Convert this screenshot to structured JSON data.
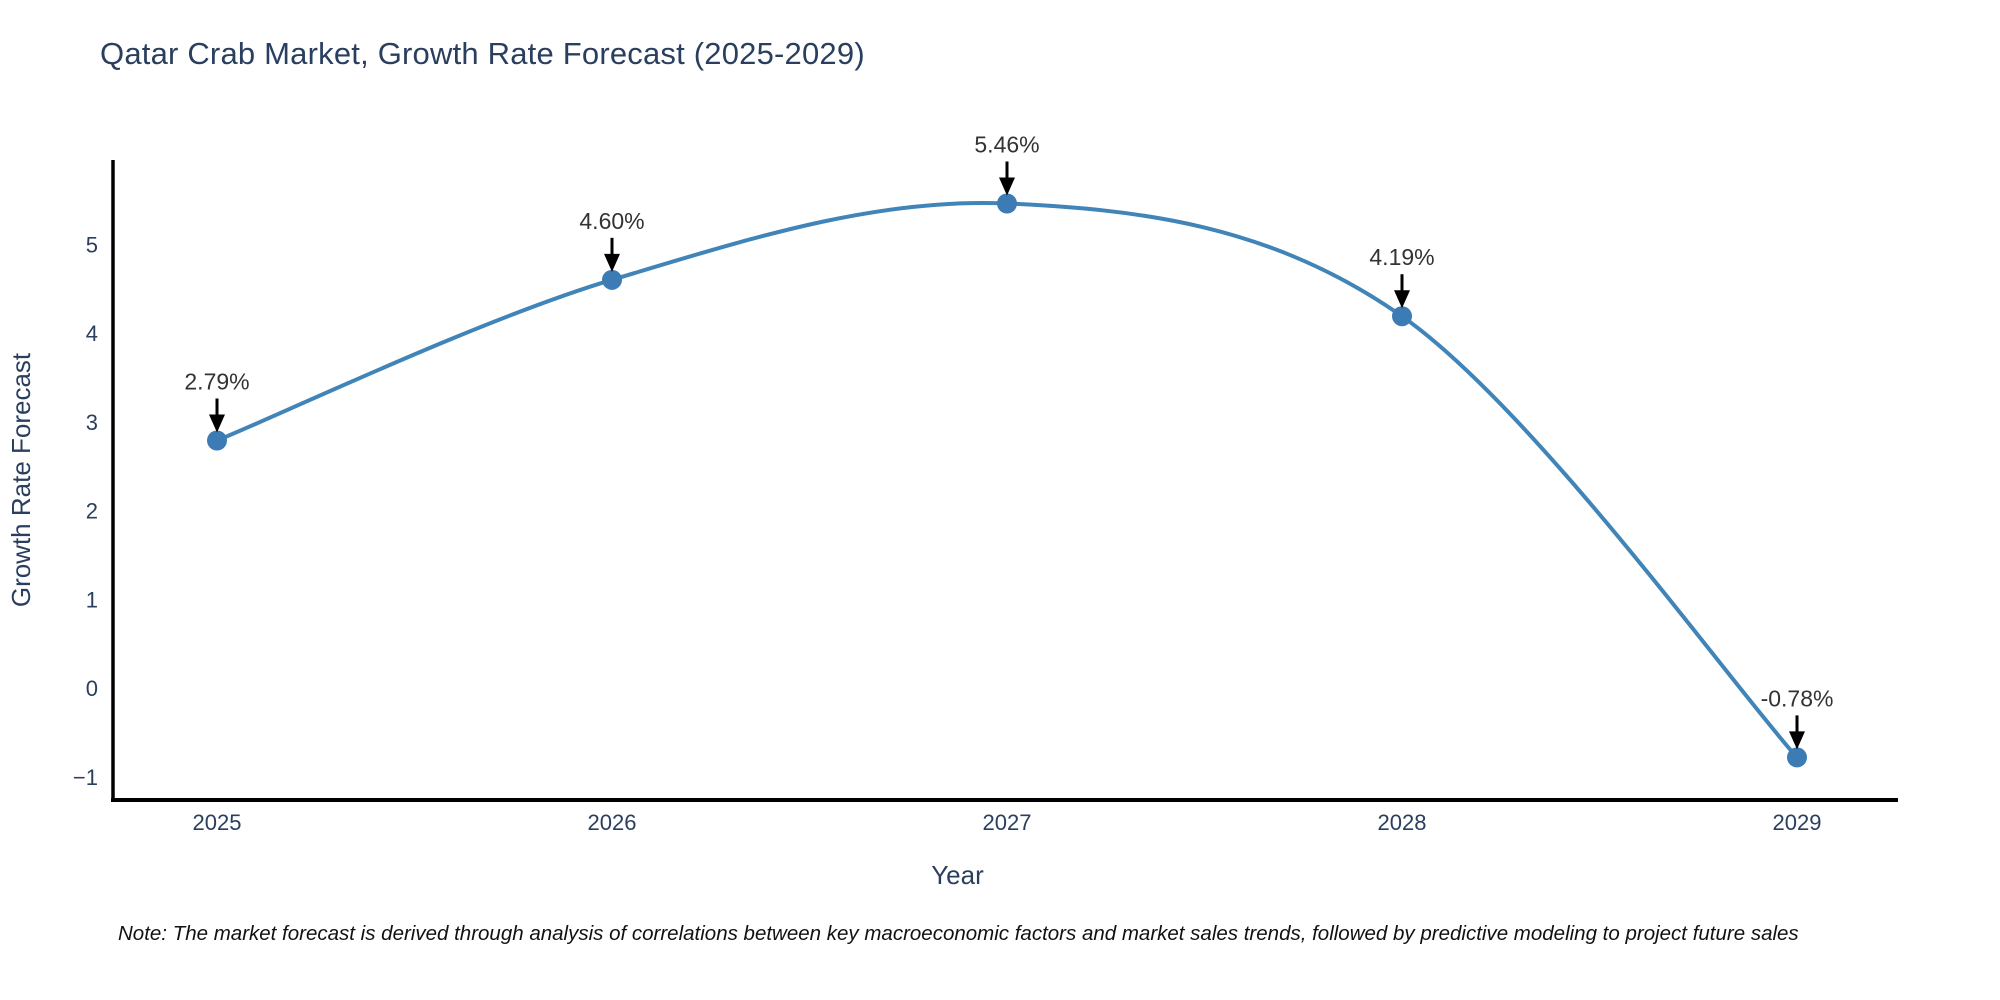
{
  "title": "Qatar Crab Market, Growth Rate Forecast (2025-2029)",
  "note": "Note: The market forecast is derived through analysis of correlations between key macroeconomic factors and market sales trends, followed by predictive modeling to project future sales",
  "colors": {
    "title_text": "#2a3f5f",
    "axis_text": "#2a3f5f",
    "annotation_text": "#333333",
    "arrow": "#000000",
    "axis_line": "#000000",
    "line": "#4184b8",
    "marker": "#3c7bb3",
    "background": "#ffffff"
  },
  "chart_data": {
    "type": "line",
    "title": "Qatar Crab Market, Growth Rate Forecast (2025-2029)",
    "x": [
      2025,
      2026,
      2027,
      2028,
      2029
    ],
    "values": [
      2.79,
      4.6,
      5.46,
      4.19,
      -0.78
    ],
    "point_labels": [
      "2.79%",
      "4.60%",
      "5.46%",
      "4.19%",
      "-0.78%"
    ],
    "xlabel": "Year",
    "ylabel": "Growth Rate Forecast",
    "xtick_labels": [
      "2025",
      "2026",
      "2027",
      "2028",
      "2029"
    ],
    "yticks": [
      -1,
      0,
      1,
      2,
      3,
      4,
      5
    ],
    "ylim": [
      -1.26,
      5.95
    ],
    "line_shape": "spline",
    "grid": false,
    "legend_position": "none",
    "marker_size": 10,
    "line_width": 4
  }
}
